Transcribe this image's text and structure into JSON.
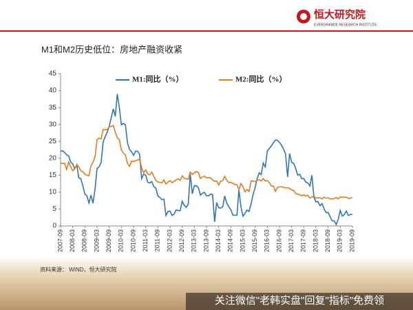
{
  "header": {
    "logo_text": "恒大研究院",
    "logo_subtitle": "EVERGRANDE RESEARCH INSTITUTE"
  },
  "chart_data": {
    "type": "line",
    "title": "M1和M2历史低位：房地产融资收紧",
    "x": [
      "2007-09",
      "2007-10",
      "2007-11",
      "2007-12",
      "2008-01",
      "2008-02",
      "2008-03",
      "2008-04",
      "2008-05",
      "2008-06",
      "2008-07",
      "2008-08",
      "2008-09",
      "2008-10",
      "2008-11",
      "2008-12",
      "2009-01",
      "2009-02",
      "2009-03",
      "2009-04",
      "2009-05",
      "2009-06",
      "2009-07",
      "2009-08",
      "2009-09",
      "2009-10",
      "2009-11",
      "2009-12",
      "2010-01",
      "2010-02",
      "2010-03",
      "2010-04",
      "2010-05",
      "2010-06",
      "2010-07",
      "2010-08",
      "2010-09",
      "2010-10",
      "2010-11",
      "2010-12",
      "2011-01",
      "2011-02",
      "2011-03",
      "2011-04",
      "2011-05",
      "2011-06",
      "2011-07",
      "2011-08",
      "2011-09",
      "2011-10",
      "2011-11",
      "2011-12",
      "2012-01",
      "2012-02",
      "2012-03",
      "2012-04",
      "2012-05",
      "2012-06",
      "2012-07",
      "2012-08",
      "2012-09",
      "2012-10",
      "2012-11",
      "2012-12",
      "2013-01",
      "2013-02",
      "2013-03",
      "2013-04",
      "2013-05",
      "2013-06",
      "2013-07",
      "2013-08",
      "2013-09",
      "2013-10",
      "2013-11",
      "2013-12",
      "2014-01",
      "2014-02",
      "2014-03",
      "2014-04",
      "2014-05",
      "2014-06",
      "2014-07",
      "2014-08",
      "2014-09",
      "2014-10",
      "2014-11",
      "2014-12",
      "2015-01",
      "2015-02",
      "2015-03",
      "2015-04",
      "2015-05",
      "2015-06",
      "2015-07",
      "2015-08",
      "2015-09",
      "2015-10",
      "2015-11",
      "2015-12",
      "2016-01",
      "2016-02",
      "2016-03",
      "2016-04",
      "2016-05",
      "2016-06",
      "2016-07",
      "2016-08",
      "2016-09",
      "2016-10",
      "2016-11",
      "2016-12",
      "2017-01",
      "2017-02",
      "2017-03",
      "2017-04",
      "2017-05",
      "2017-06",
      "2017-07",
      "2017-08",
      "2017-09",
      "2017-10",
      "2017-11",
      "2017-12",
      "2018-01",
      "2018-02",
      "2018-03",
      "2018-04",
      "2018-05",
      "2018-06",
      "2018-07",
      "2018-08",
      "2018-09",
      "2018-10",
      "2018-11",
      "2018-12",
      "2019-01",
      "2019-02",
      "2019-03",
      "2019-04",
      "2019-05",
      "2019-06",
      "2019-07",
      "2019-08",
      "2019-09"
    ],
    "series": [
      {
        "name": "M1:同比（%）",
        "color": "#2e75b6",
        "values": [
          22.1,
          22.2,
          21.7,
          21.0,
          20.7,
          18.9,
          18.3,
          16.9,
          18.1,
          14.2,
          14.0,
          11.8,
          9.4,
          8.9,
          6.8,
          9.1,
          6.7,
          10.9,
          17.0,
          17.5,
          18.7,
          24.8,
          26.4,
          27.7,
          29.5,
          32.0,
          34.6,
          32.4,
          39.0,
          35.0,
          29.9,
          30.3,
          29.9,
          24.6,
          22.6,
          21.9,
          20.9,
          22.1,
          22.1,
          21.2,
          14.0,
          15.3,
          15.0,
          12.9,
          12.7,
          13.1,
          11.6,
          11.2,
          8.9,
          8.4,
          7.8,
          7.9,
          3.1,
          4.3,
          4.4,
          3.1,
          3.5,
          4.7,
          4.6,
          4.5,
          7.3,
          6.1,
          5.5,
          6.5,
          15.3,
          9.5,
          11.9,
          11.9,
          11.3,
          9.1,
          9.7,
          9.9,
          8.9,
          8.9,
          9.4,
          9.3,
          1.2,
          6.9,
          5.4,
          5.3,
          5.7,
          8.9,
          6.7,
          5.7,
          4.8,
          3.2,
          3.2,
          3.2,
          10.6,
          5.6,
          2.9,
          3.7,
          4.7,
          4.3,
          6.6,
          9.3,
          11.4,
          14.0,
          15.7,
          15.2,
          18.6,
          17.4,
          22.1,
          22.9,
          23.7,
          24.6,
          25.4,
          25.3,
          24.7,
          23.9,
          22.7,
          21.4,
          14.5,
          21.4,
          18.8,
          18.5,
          17.0,
          15.0,
          15.3,
          14.0,
          14.0,
          13.0,
          12.7,
          11.8,
          15.0,
          8.5,
          7.1,
          7.2,
          6.0,
          6.6,
          5.1,
          3.9,
          4.0,
          2.7,
          1.5,
          1.5,
          0.4,
          2.0,
          4.6,
          2.9,
          3.4,
          4.4,
          3.1,
          3.4,
          3.4
        ]
      },
      {
        "name": "M2:同比（%）",
        "color": "#e07b22",
        "values": [
          18.5,
          18.5,
          18.5,
          16.7,
          18.9,
          17.5,
          16.3,
          16.9,
          18.1,
          17.4,
          16.3,
          16.0,
          15.3,
          15.0,
          14.8,
          17.8,
          18.8,
          20.5,
          25.5,
          26.0,
          25.7,
          28.5,
          28.4,
          28.5,
          29.3,
          29.4,
          29.7,
          27.7,
          26.1,
          25.5,
          22.5,
          21.5,
          21.0,
          18.5,
          17.6,
          19.2,
          19.0,
          19.3,
          19.5,
          19.7,
          17.2,
          15.7,
          16.6,
          15.3,
          15.1,
          15.9,
          14.7,
          13.5,
          13.0,
          12.9,
          12.7,
          13.6,
          12.4,
          13.0,
          13.4,
          12.8,
          13.2,
          13.6,
          13.9,
          13.5,
          14.8,
          14.1,
          13.9,
          13.8,
          15.9,
          15.2,
          15.7,
          16.1,
          15.8,
          14.0,
          14.5,
          14.7,
          14.2,
          14.3,
          14.2,
          13.6,
          13.2,
          13.3,
          12.1,
          13.2,
          13.4,
          14.7,
          13.5,
          12.8,
          12.9,
          12.6,
          12.3,
          12.2,
          10.8,
          12.5,
          11.6,
          10.1,
          10.8,
          10.2,
          13.3,
          13.3,
          13.1,
          13.5,
          13.7,
          13.3,
          14.0,
          13.3,
          13.4,
          12.8,
          11.8,
          11.8,
          10.2,
          11.4,
          11.5,
          11.6,
          11.4,
          11.3,
          11.3,
          11.1,
          10.6,
          10.5,
          9.6,
          9.4,
          9.2,
          8.9,
          9.2,
          8.8,
          9.1,
          8.2,
          8.6,
          8.8,
          8.2,
          8.3,
          8.3,
          8.0,
          8.5,
          8.2,
          8.3,
          8.0,
          8.0,
          8.1,
          8.4,
          8.0,
          8.6,
          8.5,
          8.5,
          8.5,
          8.1,
          8.2,
          8.4
        ]
      }
    ],
    "xlim": [
      "2007-09",
      "2019-09"
    ],
    "xticks": [
      "2007-09",
      "2008-03",
      "2008-09",
      "2009-03",
      "2009-09",
      "2010-03",
      "2010-09",
      "2011-03",
      "2011-09",
      "2012-03",
      "2012-09",
      "2013-03",
      "2013-09",
      "2014-03",
      "2014-09",
      "2015-03",
      "2015-09",
      "2016-03",
      "2016-09",
      "2017-03",
      "2017-09",
      "2018-03",
      "2018-09",
      "2019-03",
      "2019-09"
    ],
    "ylim": [
      0,
      45
    ],
    "yticks": [
      0,
      5,
      10,
      15,
      20,
      25,
      30,
      35,
      40,
      45
    ],
    "legend": "top"
  },
  "footer": {
    "source": "资料来源：  WIND，恒大研究院",
    "watermark": "关注微信\"老韩实盘\"回复\"指标\"免费领"
  }
}
